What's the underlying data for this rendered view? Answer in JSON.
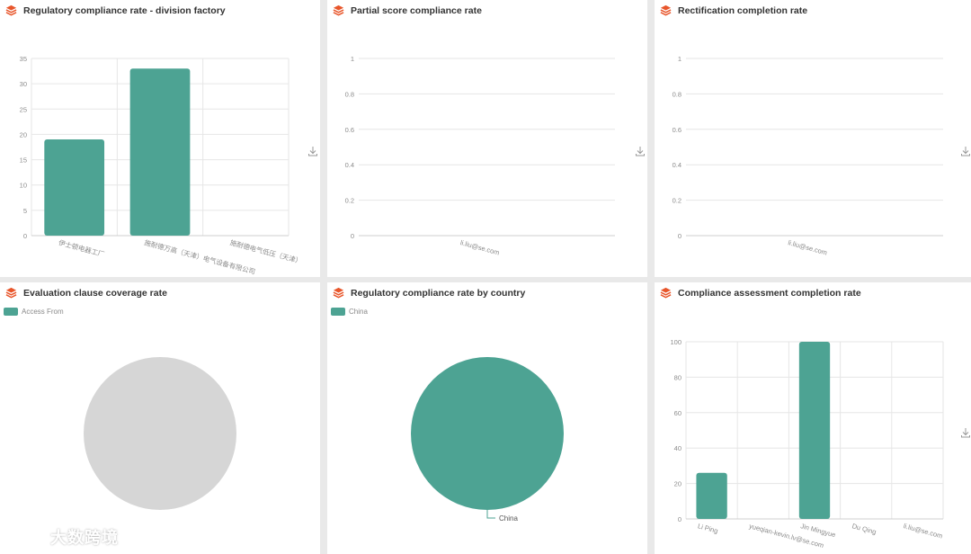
{
  "colors": {
    "accent": "#4da393",
    "grid": "#e6e6e6",
    "axis_text": "#8c8c8c",
    "pie_empty": "#d6d6d6",
    "icon": "#e8562b"
  },
  "panels": [
    {
      "title": "Regulatory compliance rate - division factory"
    },
    {
      "title": "Partial score compliance rate"
    },
    {
      "title": "Rectification completion rate"
    },
    {
      "title": "Evaluation clause coverage rate",
      "legend": "Access From"
    },
    {
      "title": "Regulatory compliance rate by country",
      "legend": "China",
      "slice_label": "China"
    },
    {
      "title": "Compliance assessment completion rate"
    }
  ],
  "icons": {
    "panel": "stack-logo-icon",
    "download": "download-icon"
  },
  "watermark": {
    "text": "大数跨境"
  },
  "chart_data": [
    {
      "type": "bar",
      "title": "Regulatory compliance rate - division factory",
      "categories": [
        "伊士顿电器工厂",
        "施耐德万高（天津）电气设备有限公司",
        "施耐德电气低压（天津）"
      ],
      "values": [
        19,
        33,
        0
      ],
      "yticks": [
        "0",
        "5",
        "10",
        "15",
        "20",
        "25",
        "30",
        "35"
      ],
      "ylim": [
        0,
        35
      ]
    },
    {
      "type": "bar",
      "title": "Partial score compliance rate",
      "categories": [
        "li.liu@se.com"
      ],
      "values": [
        0
      ],
      "yticks": [
        "0",
        "0.2",
        "0.4",
        "0.6",
        "0.8",
        "1"
      ],
      "ylim": [
        0,
        1
      ]
    },
    {
      "type": "bar",
      "title": "Rectification completion rate",
      "categories": [
        "li.liu@se.com"
      ],
      "values": [
        0
      ],
      "yticks": [
        "0",
        "0.2",
        "0.4",
        "0.6",
        "0.8",
        "1"
      ],
      "ylim": [
        0,
        1
      ]
    },
    {
      "type": "pie",
      "title": "Evaluation clause coverage rate",
      "series": [
        {
          "name": "Access From",
          "values": []
        }
      ]
    },
    {
      "type": "pie",
      "title": "Regulatory compliance rate by country",
      "categories": [
        "China"
      ],
      "values": [
        100
      ]
    },
    {
      "type": "bar",
      "title": "Compliance assessment completion rate",
      "categories": [
        "Li Ping",
        "yueqian-kevin.lv@se.com",
        "Jin Mingyue",
        "Du Qing",
        "li.liu@se.com"
      ],
      "values": [
        26,
        0,
        100,
        0,
        0
      ],
      "yticks": [
        "0",
        "20",
        "40",
        "60",
        "80",
        "100"
      ],
      "ylim": [
        0,
        100
      ]
    }
  ]
}
